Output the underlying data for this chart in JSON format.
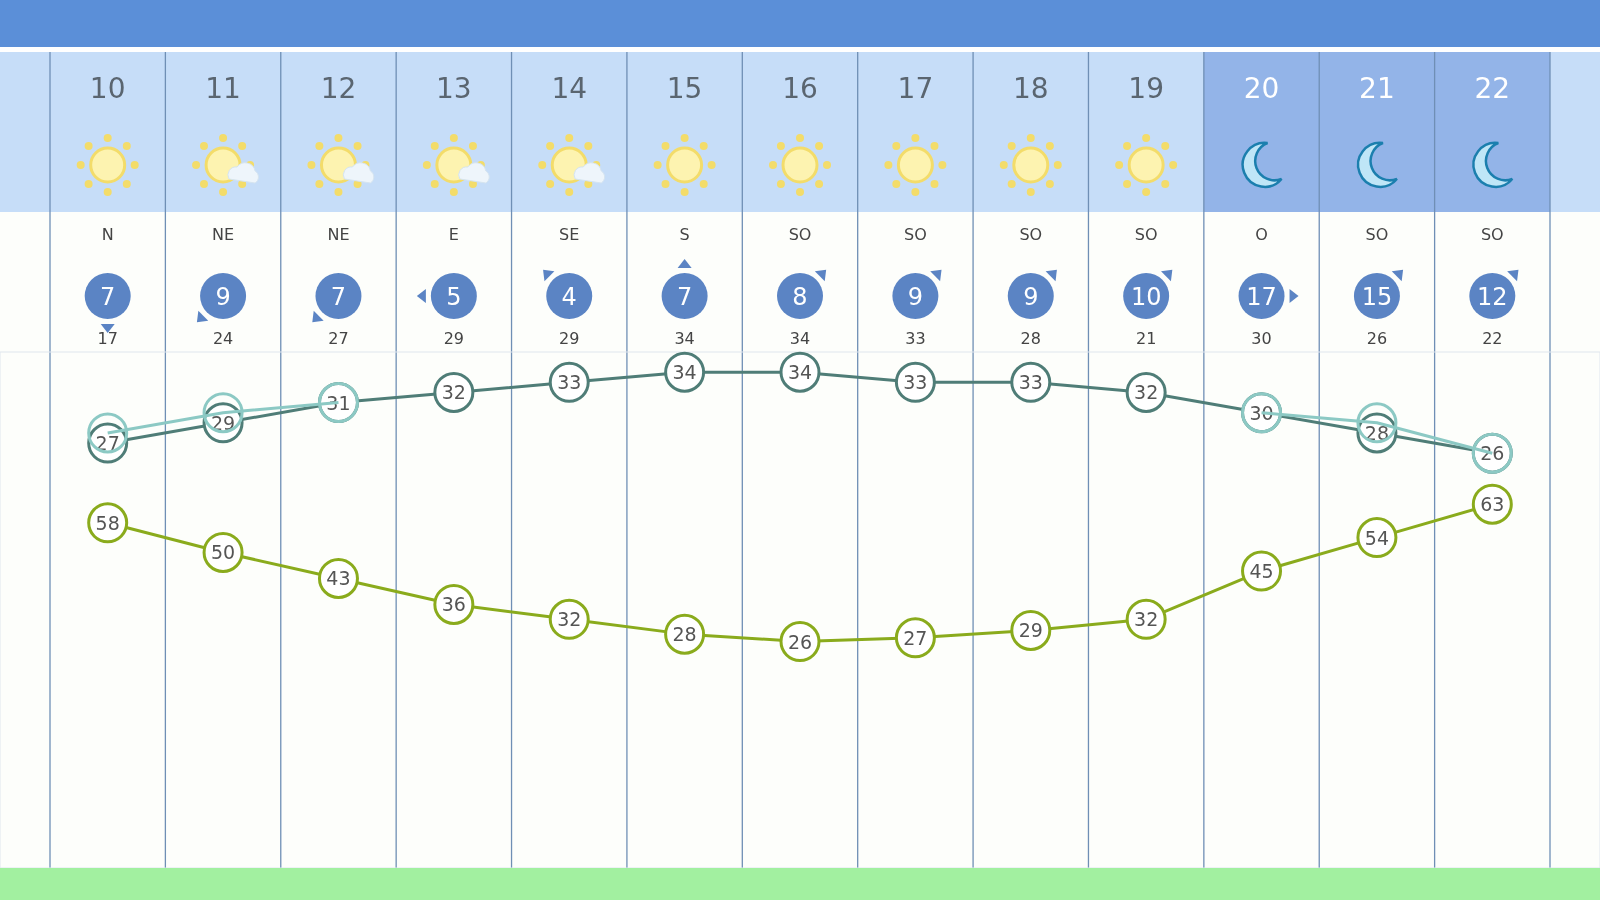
{
  "chart_data": {
    "type": "line",
    "categories": [
      "10",
      "11",
      "12",
      "13",
      "14",
      "15",
      "16",
      "17",
      "18",
      "19",
      "20",
      "21",
      "22"
    ],
    "series": [
      {
        "color": "#8cc9c4",
        "values": [
          28,
          30,
          31,
          null,
          null,
          null,
          null,
          null,
          null,
          null,
          30,
          29,
          26
        ],
        "value_labels": [
          null,
          null,
          null,
          null,
          null,
          null,
          null,
          null,
          null,
          null,
          null,
          null,
          null
        ]
      },
      {
        "color": "#4f7d77",
        "values": [
          27,
          29,
          31,
          32,
          33,
          34,
          34,
          33,
          33,
          32,
          30,
          28,
          26
        ]
      },
      {
        "color": "#8aab1c",
        "axis": "y2",
        "values": [
          58,
          50,
          43,
          36,
          32,
          28,
          26,
          27,
          29,
          32,
          45,
          54,
          63
        ]
      }
    ],
    "ylim": [
      -15,
      36
    ],
    "y2lim": [
      -35,
      104
    ],
    "grid": "x",
    "marker": "circle",
    "data_labels": true,
    "annotations": [
      "N",
      "NE",
      "NE",
      "E",
      "SE",
      "S",
      "SO",
      "SO",
      "SO",
      "SO",
      "O",
      "SO",
      "SO",
      "7",
      "9",
      "7",
      "5",
      "4",
      "7",
      "8",
      "9",
      "9",
      "10",
      "17",
      "15",
      "12",
      "17",
      "24",
      "27",
      "29",
      "29",
      "34",
      "34",
      "33",
      "28",
      "21",
      "30",
      "26",
      "22"
    ]
  }
}
